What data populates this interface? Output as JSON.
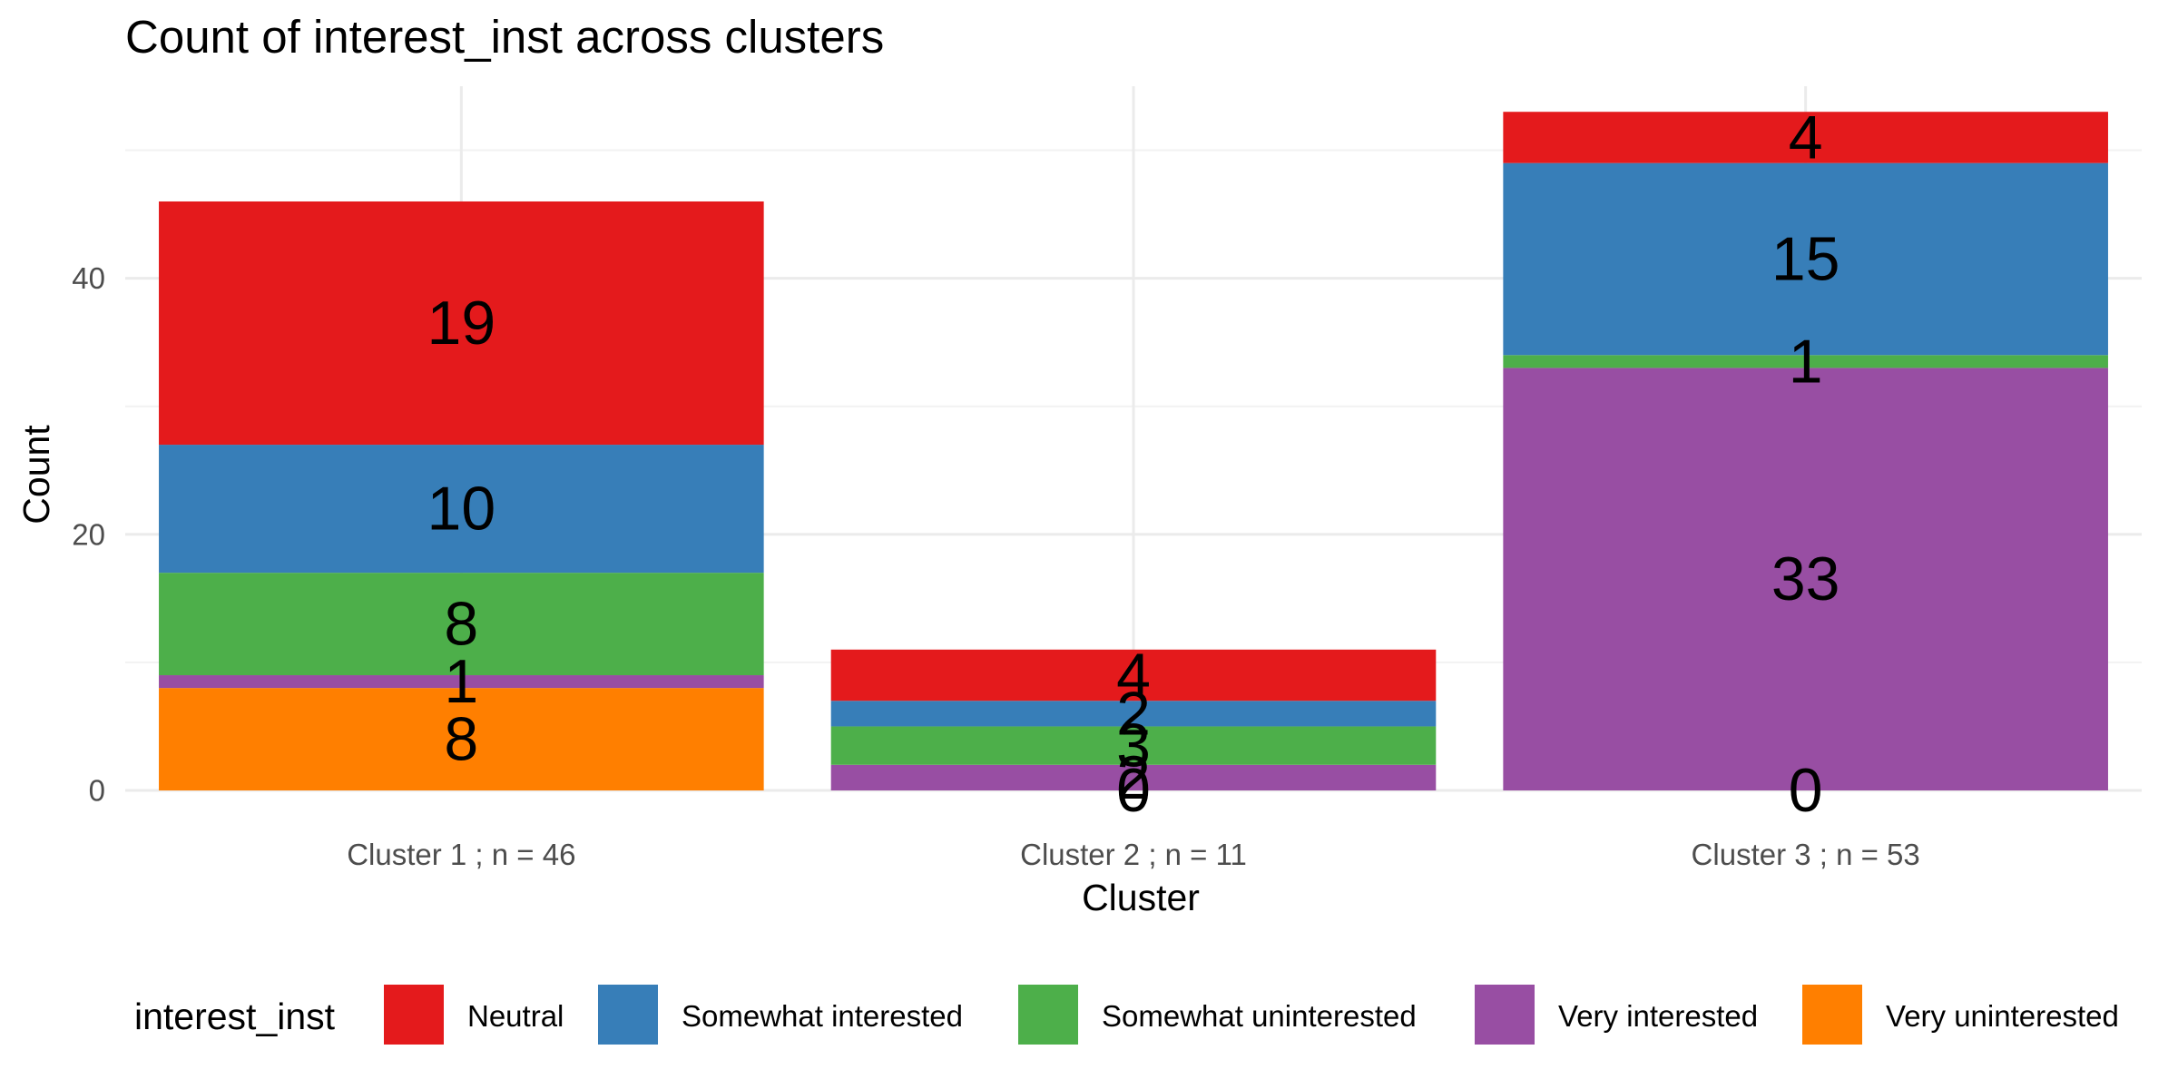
{
  "chart_data": {
    "type": "bar",
    "stacked": true,
    "title": "Count of interest_inst across clusters",
    "xlabel": "Cluster",
    "ylabel": "Count",
    "ylim": [
      0,
      55
    ],
    "yticks": [
      0,
      20,
      40
    ],
    "grid": true,
    "legend": {
      "title": "interest_inst",
      "position": "bottom"
    },
    "categories": [
      "Cluster 1 ; n = 46",
      "Cluster 2 ; n = 11",
      "Cluster 3 ; n = 53"
    ],
    "series": [
      {
        "name": "Very uninterested",
        "color": "#FF7F00",
        "values": [
          8,
          0,
          0
        ]
      },
      {
        "name": "Very interested",
        "color": "#984EA3",
        "values": [
          1,
          2,
          33
        ]
      },
      {
        "name": "Somewhat uninterested",
        "color": "#4DAF4A",
        "values": [
          8,
          3,
          1
        ]
      },
      {
        "name": "Somewhat interested",
        "color": "#377EB8",
        "values": [
          10,
          2,
          15
        ]
      },
      {
        "name": "Neutral",
        "color": "#E41A1C",
        "values": [
          19,
          4,
          4
        ]
      }
    ],
    "legend_order": [
      "Neutral",
      "Somewhat interested",
      "Somewhat uninterested",
      "Very interested",
      "Very uninterested"
    ]
  }
}
